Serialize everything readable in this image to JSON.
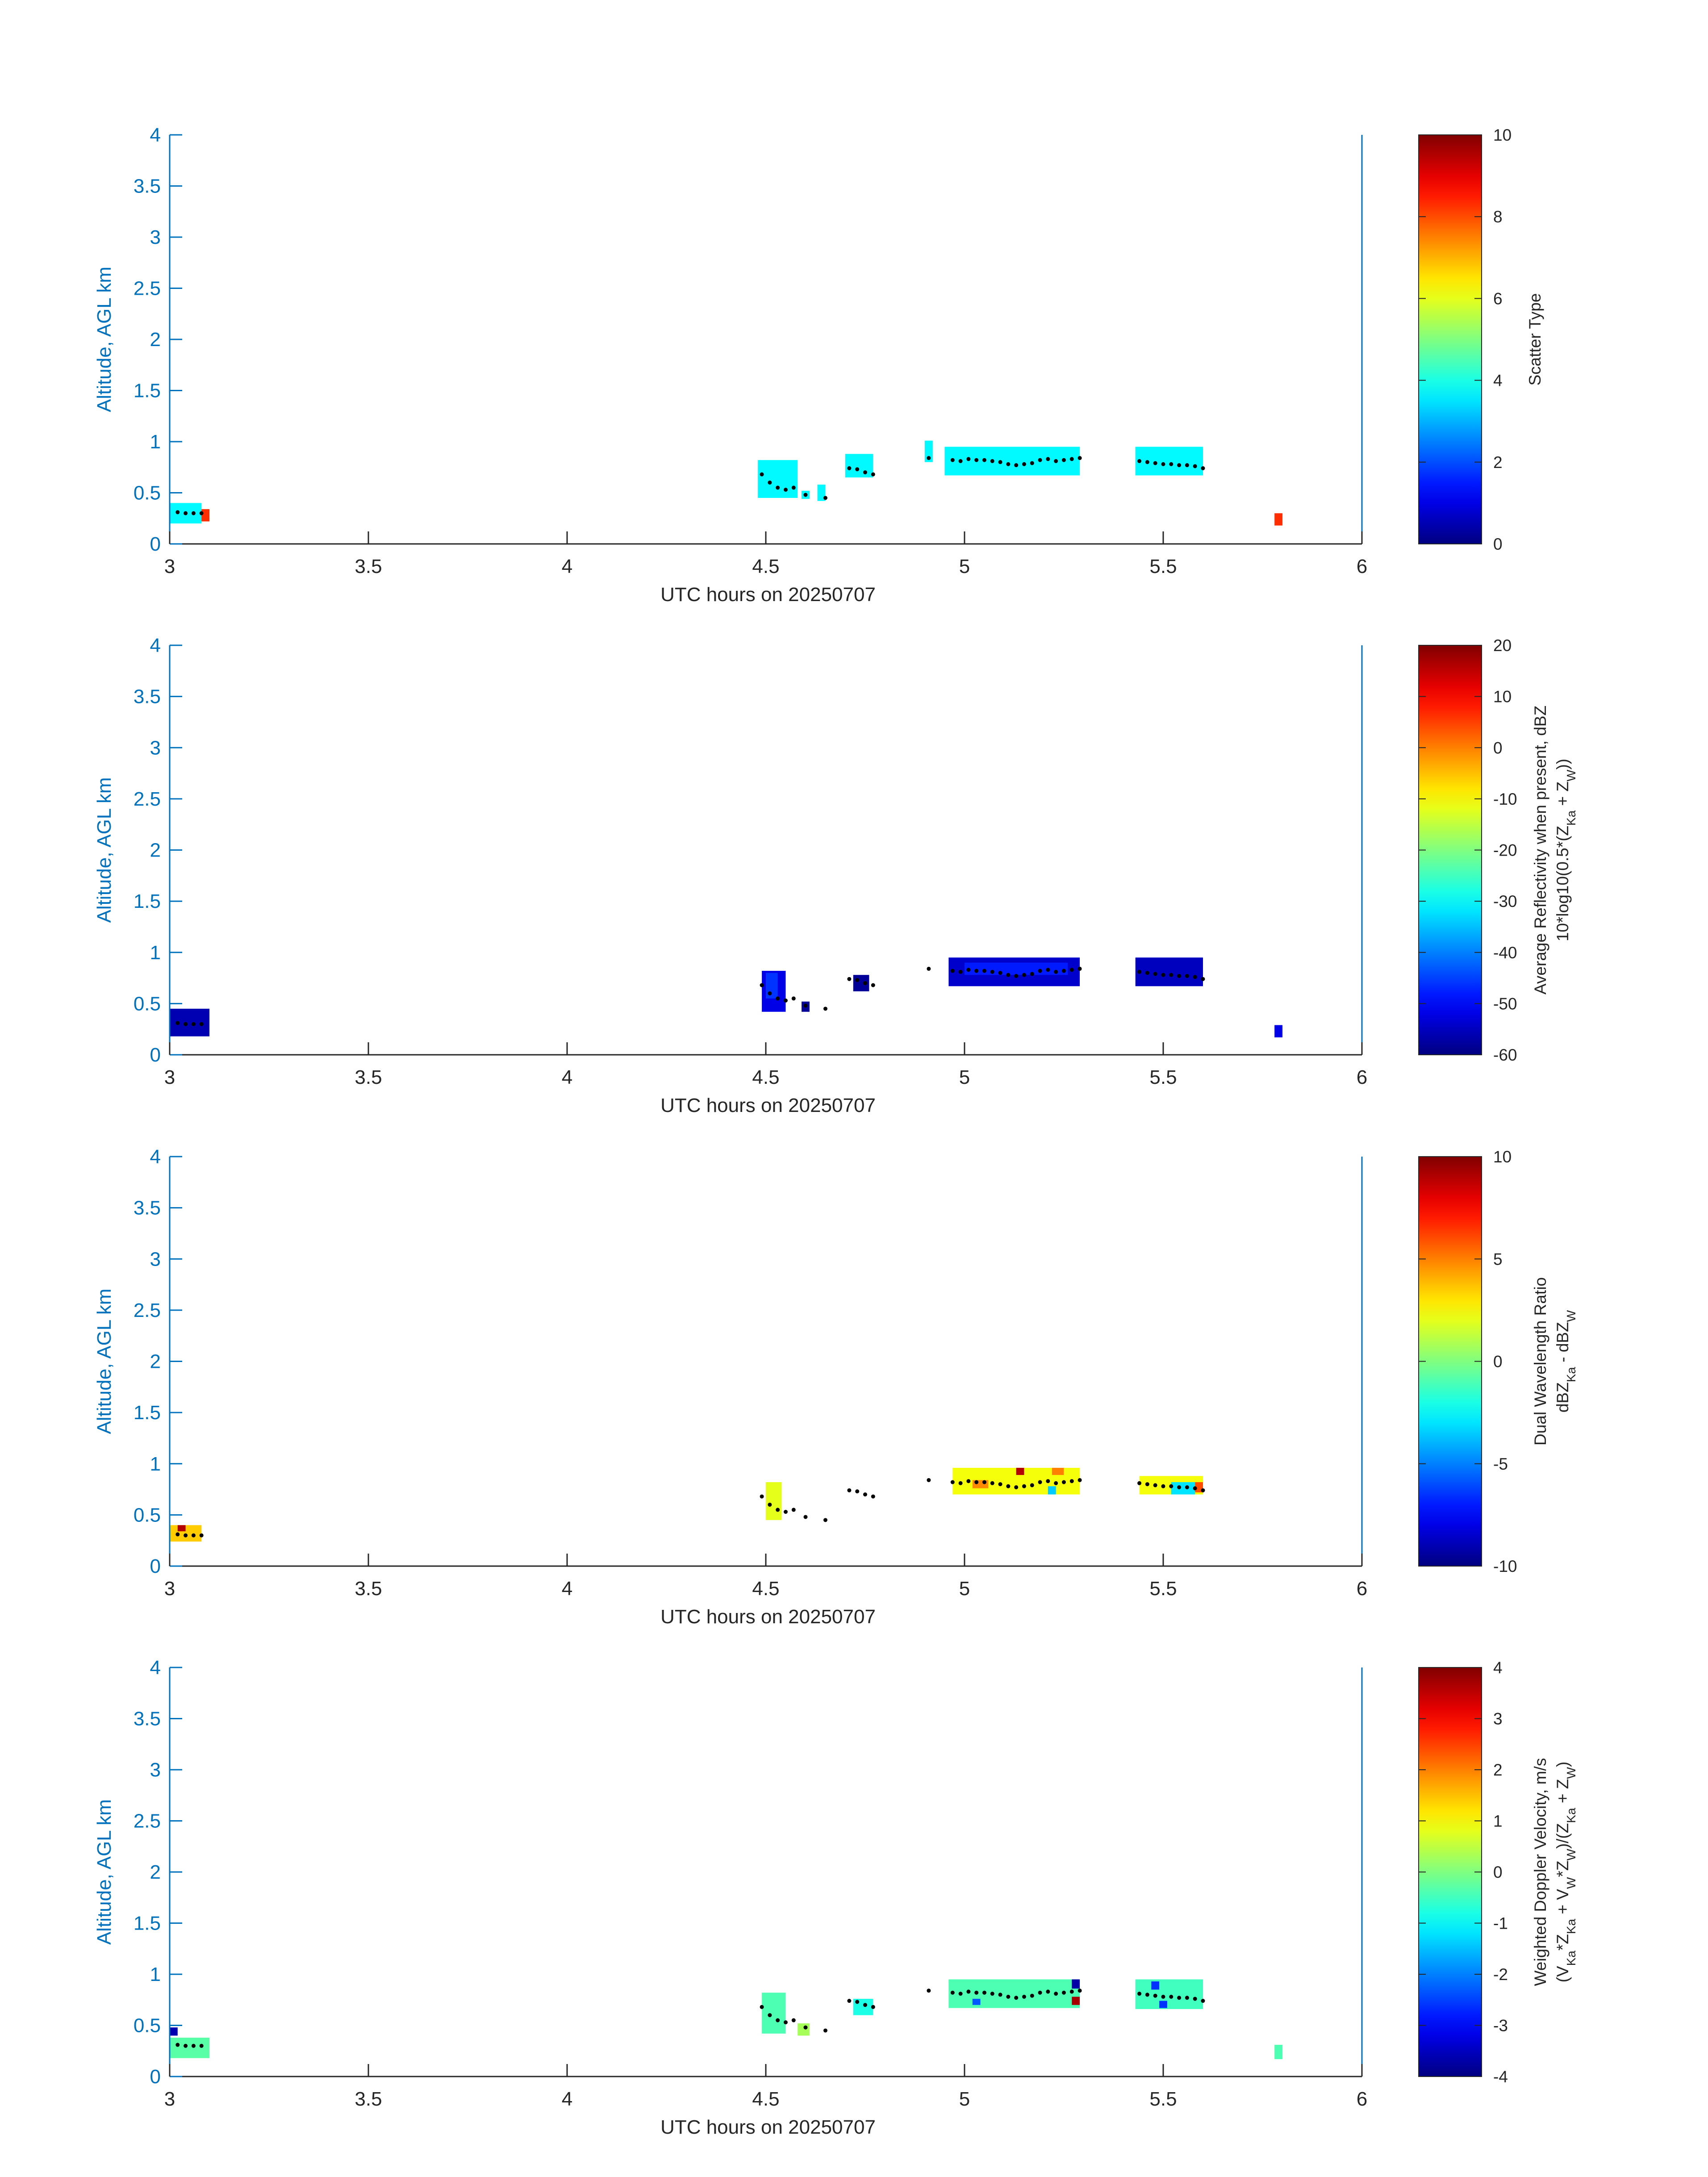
{
  "chart_data": [
    {
      "type": "heatmap",
      "xlabel": "UTC hours on 20250707",
      "ylabel": "Altitude, AGL km",
      "xlim": [
        3,
        6
      ],
      "ylim": [
        0,
        4
      ],
      "xticks": [
        3,
        3.5,
        4,
        4.5,
        5,
        5.5,
        6
      ],
      "xtick_labels": [
        "3",
        "3.5",
        "4",
        "4.5",
        "5",
        "5.5",
        "6"
      ],
      "yticks": [
        0,
        0.5,
        1,
        1.5,
        2,
        2.5,
        3,
        3.5,
        4
      ],
      "ytick_labels": [
        "0",
        "0.5",
        "1",
        "1.5",
        "2",
        "2.5",
        "3",
        "3.5",
        "4"
      ],
      "colorbar": {
        "label_lines": [
          "Scatter Type"
        ],
        "range": [
          0,
          10
        ],
        "ticks": [
          0,
          2,
          4,
          6,
          8,
          10
        ],
        "tick_labels": [
          "0",
          "2",
          "4",
          "6",
          "8",
          "10"
        ],
        "colormap": "jet"
      },
      "cells": [
        {
          "t0": 3.0,
          "t1": 3.08,
          "z0": 0.2,
          "z1": 0.4,
          "v": 3.7
        },
        {
          "t0": 3.08,
          "t1": 3.1,
          "z0": 0.22,
          "z1": 0.34,
          "v": 8.3
        },
        {
          "t0": 4.48,
          "t1": 4.58,
          "z0": 0.45,
          "z1": 0.82,
          "v": 3.7
        },
        {
          "t0": 4.59,
          "t1": 4.61,
          "z0": 0.44,
          "z1": 0.52,
          "v": 3.7
        },
        {
          "t0": 4.63,
          "t1": 4.65,
          "z0": 0.42,
          "z1": 0.58,
          "v": 3.7
        },
        {
          "t0": 4.7,
          "t1": 4.77,
          "z0": 0.65,
          "z1": 0.88,
          "v": 3.7
        },
        {
          "t0": 4.9,
          "t1": 4.92,
          "z0": 0.8,
          "z1": 1.01,
          "v": 3.7
        },
        {
          "t0": 4.95,
          "t1": 5.29,
          "z0": 0.67,
          "z1": 0.95,
          "v": 3.7
        },
        {
          "t0": 5.43,
          "t1": 5.6,
          "z0": 0.67,
          "z1": 0.95,
          "v": 3.7
        },
        {
          "t0": 5.78,
          "t1": 5.8,
          "z0": 0.18,
          "z1": 0.3,
          "v": 8.3
        }
      ]
    },
    {
      "type": "heatmap",
      "xlabel": "UTC hours on 20250707",
      "ylabel": "Altitude, AGL km",
      "xlim": [
        3,
        6
      ],
      "ylim": [
        0,
        4
      ],
      "xticks": [
        3,
        3.5,
        4,
        4.5,
        5,
        5.5,
        6
      ],
      "xtick_labels": [
        "3",
        "3.5",
        "4",
        "4.5",
        "5",
        "5.5",
        "6"
      ],
      "yticks": [
        0,
        0.5,
        1,
        1.5,
        2,
        2.5,
        3,
        3.5,
        4
      ],
      "ytick_labels": [
        "0",
        "0.5",
        "1",
        "1.5",
        "2",
        "2.5",
        "3",
        "3.5",
        "4"
      ],
      "colorbar": {
        "label_lines": [
          "Average Reflectivity when present, dBZ",
          "10*log10(0.5*(Z<sub>Ka</sub> + Z<sub>W</sub>))"
        ],
        "range": [
          -60,
          20
        ],
        "ticks": [
          -60,
          -50,
          -40,
          -30,
          -20,
          -10,
          0,
          10,
          20
        ],
        "tick_labels": [
          "-60",
          "-50",
          "-40",
          "-30",
          "-20",
          "-10",
          "0",
          "10",
          "20"
        ],
        "colormap": "jet"
      },
      "cells": [
        {
          "t0": 3.0,
          "t1": 3.1,
          "z0": 0.18,
          "z1": 0.45,
          "v": -56
        },
        {
          "t0": 4.49,
          "t1": 4.55,
          "z0": 0.42,
          "z1": 0.82,
          "v": -52
        },
        {
          "t0": 4.5,
          "t1": 4.53,
          "z0": 0.55,
          "z1": 0.8,
          "v": -46
        },
        {
          "t0": 4.59,
          "t1": 4.61,
          "z0": 0.42,
          "z1": 0.52,
          "v": -58
        },
        {
          "t0": 4.72,
          "t1": 4.76,
          "z0": 0.62,
          "z1": 0.78,
          "v": -58
        },
        {
          "t0": 4.96,
          "t1": 5.29,
          "z0": 0.67,
          "z1": 0.95,
          "v": -54
        },
        {
          "t0": 5.0,
          "t1": 5.26,
          "z0": 0.78,
          "z1": 0.9,
          "v": -48
        },
        {
          "t0": 5.43,
          "t1": 5.6,
          "z0": 0.67,
          "z1": 0.95,
          "v": -55
        },
        {
          "t0": 5.78,
          "t1": 5.8,
          "z0": 0.17,
          "z1": 0.29,
          "v": -52
        }
      ]
    },
    {
      "type": "heatmap",
      "xlabel": "UTC hours on 20250707",
      "ylabel": "Altitude, AGL km",
      "xlim": [
        3,
        6
      ],
      "ylim": [
        0,
        4
      ],
      "xticks": [
        3,
        3.5,
        4,
        4.5,
        5,
        5.5,
        6
      ],
      "xtick_labels": [
        "3",
        "3.5",
        "4",
        "4.5",
        "5",
        "5.5",
        "6"
      ],
      "yticks": [
        0,
        0.5,
        1,
        1.5,
        2,
        2.5,
        3,
        3.5,
        4
      ],
      "ytick_labels": [
        "0",
        "0.5",
        "1",
        "1.5",
        "2",
        "2.5",
        "3",
        "3.5",
        "4"
      ],
      "colorbar": {
        "label_lines": [
          "Dual Wavelength Ratio",
          "dBZ<sub>Ka</sub> - dBZ<sub>W</sub>"
        ],
        "range": [
          -10,
          10
        ],
        "ticks": [
          -10,
          -5,
          0,
          5,
          10
        ],
        "tick_labels": [
          "-10",
          "-5",
          "0",
          "5",
          "10"
        ],
        "colormap": "jet"
      },
      "cells": [
        {
          "t0": 3.0,
          "t1": 3.08,
          "z0": 0.24,
          "z1": 0.4,
          "v": 3.5
        },
        {
          "t0": 3.02,
          "t1": 3.04,
          "z0": 0.34,
          "z1": 0.4,
          "v": 9.0
        },
        {
          "t0": 4.5,
          "t1": 4.54,
          "z0": 0.45,
          "z1": 0.82,
          "v": 2.0
        },
        {
          "t0": 4.97,
          "t1": 5.29,
          "z0": 0.7,
          "z1": 0.96,
          "v": 2.3
        },
        {
          "t0": 5.02,
          "t1": 5.06,
          "z0": 0.76,
          "z1": 0.84,
          "v": 4.8
        },
        {
          "t0": 5.13,
          "t1": 5.15,
          "z0": 0.89,
          "z1": 0.96,
          "v": 9.0
        },
        {
          "t0": 5.22,
          "t1": 5.25,
          "z0": 0.89,
          "z1": 0.96,
          "v": 5.0
        },
        {
          "t0": 5.21,
          "t1": 5.23,
          "z0": 0.7,
          "z1": 0.78,
          "v": -3.5
        },
        {
          "t0": 5.44,
          "t1": 5.6,
          "z0": 0.7,
          "z1": 0.88,
          "v": 2.3
        },
        {
          "t0": 5.52,
          "t1": 5.58,
          "z0": 0.7,
          "z1": 0.82,
          "v": -3.0
        },
        {
          "t0": 5.58,
          "t1": 5.6,
          "z0": 0.72,
          "z1": 0.82,
          "v": 6.0
        }
      ]
    },
    {
      "type": "heatmap",
      "xlabel": "UTC hours on 20250707",
      "ylabel": "Altitude, AGL km",
      "xlim": [
        3,
        6
      ],
      "ylim": [
        0,
        4
      ],
      "xticks": [
        3,
        3.5,
        4,
        4.5,
        5,
        5.5,
        6
      ],
      "xtick_labels": [
        "3",
        "3.5",
        "4",
        "4.5",
        "5",
        "5.5",
        "6"
      ],
      "yticks": [
        0,
        0.5,
        1,
        1.5,
        2,
        2.5,
        3,
        3.5,
        4
      ],
      "ytick_labels": [
        "0",
        "0.5",
        "1",
        "1.5",
        "2",
        "2.5",
        "3",
        "3.5",
        "4"
      ],
      "colorbar": {
        "label_lines": [
          "Weighted Doppler Velocity, m/s",
          "(V<sub>Ka</sub>*Z<sub>Ka</sub> + V<sub>W</sub>*Z<sub>W</sub>)/(Z<sub>Ka</sub> + Z<sub>W</sub>)"
        ],
        "range": [
          -4,
          4
        ],
        "ticks": [
          -4,
          -3,
          -2,
          -1,
          0,
          1,
          2,
          3,
          4
        ],
        "tick_labels": [
          "-4",
          "-3",
          "-2",
          "-1",
          "0",
          "1",
          "2",
          "3",
          "4"
        ],
        "colormap": "jet"
      },
      "cells": [
        {
          "t0": 3.0,
          "t1": 3.1,
          "z0": 0.18,
          "z1": 0.38,
          "v": -0.3
        },
        {
          "t0": 3.0,
          "t1": 3.02,
          "z0": 0.4,
          "z1": 0.48,
          "v": -3.6
        },
        {
          "t0": 4.49,
          "t1": 4.55,
          "z0": 0.42,
          "z1": 0.82,
          "v": -0.4
        },
        {
          "t0": 4.58,
          "t1": 4.61,
          "z0": 0.4,
          "z1": 0.52,
          "v": 0.3
        },
        {
          "t0": 4.72,
          "t1": 4.77,
          "z0": 0.6,
          "z1": 0.76,
          "v": -0.8
        },
        {
          "t0": 4.96,
          "t1": 5.29,
          "z0": 0.67,
          "z1": 0.95,
          "v": -0.4
        },
        {
          "t0": 5.02,
          "t1": 5.04,
          "z0": 0.7,
          "z1": 0.76,
          "v": -2.3
        },
        {
          "t0": 5.27,
          "t1": 5.29,
          "z0": 0.86,
          "z1": 0.95,
          "v": -3.7
        },
        {
          "t0": 5.27,
          "t1": 5.29,
          "z0": 0.7,
          "z1": 0.78,
          "v": 3.7
        },
        {
          "t0": 5.43,
          "t1": 5.6,
          "z0": 0.66,
          "z1": 0.95,
          "v": -0.5
        },
        {
          "t0": 5.47,
          "t1": 5.49,
          "z0": 0.85,
          "z1": 0.93,
          "v": -2.6
        },
        {
          "t0": 5.49,
          "t1": 5.51,
          "z0": 0.67,
          "z1": 0.74,
          "v": -2.6
        },
        {
          "t0": 5.78,
          "t1": 5.8,
          "z0": 0.17,
          "z1": 0.31,
          "v": -0.4
        }
      ]
    }
  ],
  "trace_points": [
    {
      "t": 3.02,
      "z": 0.31
    },
    {
      "t": 3.04,
      "z": 0.3
    },
    {
      "t": 3.06,
      "z": 0.3
    },
    {
      "t": 3.08,
      "z": 0.3
    },
    {
      "t": 4.49,
      "z": 0.68
    },
    {
      "t": 4.51,
      "z": 0.6
    },
    {
      "t": 4.53,
      "z": 0.55
    },
    {
      "t": 4.55,
      "z": 0.53
    },
    {
      "t": 4.57,
      "z": 0.55
    },
    {
      "t": 4.6,
      "z": 0.48
    },
    {
      "t": 4.65,
      "z": 0.45
    },
    {
      "t": 4.71,
      "z": 0.74
    },
    {
      "t": 4.73,
      "z": 0.73
    },
    {
      "t": 4.75,
      "z": 0.7
    },
    {
      "t": 4.77,
      "z": 0.68
    },
    {
      "t": 4.91,
      "z": 0.84
    },
    {
      "t": 4.97,
      "z": 0.82
    },
    {
      "t": 4.99,
      "z": 0.81
    },
    {
      "t": 5.01,
      "z": 0.83
    },
    {
      "t": 5.03,
      "z": 0.82
    },
    {
      "t": 5.05,
      "z": 0.82
    },
    {
      "t": 5.07,
      "z": 0.81
    },
    {
      "t": 5.09,
      "z": 0.8
    },
    {
      "t": 5.11,
      "z": 0.78
    },
    {
      "t": 5.13,
      "z": 0.77
    },
    {
      "t": 5.15,
      "z": 0.78
    },
    {
      "t": 5.17,
      "z": 0.79
    },
    {
      "t": 5.19,
      "z": 0.82
    },
    {
      "t": 5.21,
      "z": 0.83
    },
    {
      "t": 5.23,
      "z": 0.81
    },
    {
      "t": 5.25,
      "z": 0.82
    },
    {
      "t": 5.27,
      "z": 0.83
    },
    {
      "t": 5.29,
      "z": 0.84
    },
    {
      "t": 5.44,
      "z": 0.81
    },
    {
      "t": 5.46,
      "z": 0.8
    },
    {
      "t": 5.48,
      "z": 0.79
    },
    {
      "t": 5.5,
      "z": 0.78
    },
    {
      "t": 5.52,
      "z": 0.78
    },
    {
      "t": 5.54,
      "z": 0.77
    },
    {
      "t": 5.56,
      "z": 0.77
    },
    {
      "t": 5.58,
      "z": 0.76
    },
    {
      "t": 5.6,
      "z": 0.74
    }
  ],
  "colors": {
    "axis": "#0072bd",
    "text": "#262626",
    "trace_dot": "#000000"
  }
}
